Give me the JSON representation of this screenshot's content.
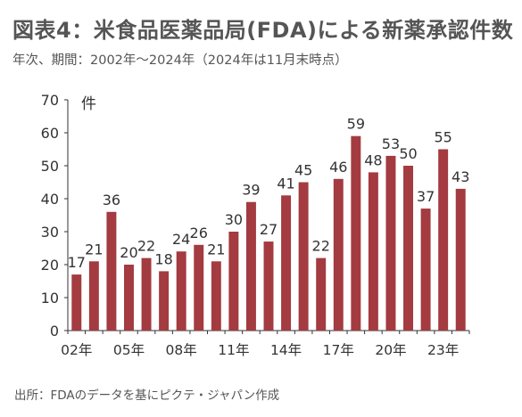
{
  "title": "図表4：米食品医薬品局(FDA)による新薬承認件数",
  "subtitle": "年次、期間：2002年～2024年（2024年は11月末時点）",
  "source": "出所：FDAのデータを基にピクテ・ジャパン作成",
  "colors": {
    "bar": "#a33b40",
    "axis": "#333333",
    "text": "#555555"
  },
  "chart_data": {
    "type": "bar",
    "x": [
      2002,
      2003,
      2004,
      2005,
      2006,
      2007,
      2008,
      2009,
      2010,
      2011,
      2012,
      2013,
      2014,
      2015,
      2016,
      2017,
      2018,
      2019,
      2020,
      2021,
      2022,
      2023,
      2024
    ],
    "values": [
      17,
      21,
      36,
      20,
      22,
      18,
      24,
      26,
      21,
      30,
      39,
      27,
      41,
      45,
      22,
      46,
      59,
      48,
      53,
      50,
      37,
      55,
      43
    ],
    "x_tick_labels": [
      "02年",
      "05年",
      "08年",
      "11年",
      "14年",
      "17年",
      "20年",
      "23年"
    ],
    "x_tick_years": [
      2002,
      2005,
      2008,
      2011,
      2014,
      2017,
      2020,
      2023
    ],
    "ylabel": "件",
    "ylim": [
      0,
      70
    ],
    "yticks": [
      0,
      10,
      20,
      30,
      40,
      50,
      60,
      70
    ],
    "grid": false,
    "data_labels": true
  }
}
